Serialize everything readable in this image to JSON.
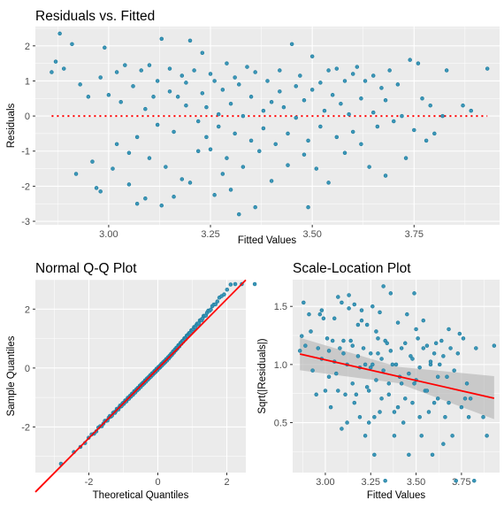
{
  "colors": {
    "panel_bg": "#ebebeb",
    "grid": "#ffffff",
    "point": "#1f7ea0",
    "point_fill": "#3d97b8",
    "line": "#ff0000",
    "band": "#b3b3b3"
  },
  "chart_data": [
    {
      "type": "scatter",
      "title": "Residuals vs. Fitted",
      "xlabel": "Fitted Values",
      "ylabel": "Residuals",
      "xlim": [
        2.82,
        3.96
      ],
      "ylim": [
        -3.1,
        2.55
      ],
      "xticks": [
        {
          "v": 3.0,
          "label": "3.00"
        },
        {
          "v": 3.25,
          "label": "3.25"
        },
        {
          "v": 3.5,
          "label": "3.50"
        },
        {
          "v": 3.75,
          "label": "3.75"
        }
      ],
      "yticks": [
        {
          "v": -3,
          "label": "-3"
        },
        {
          "v": -2,
          "label": "-2"
        },
        {
          "v": -1,
          "label": "-1"
        },
        {
          "v": 0,
          "label": "0"
        },
        {
          "v": 1,
          "label": "1"
        },
        {
          "v": 2,
          "label": "2"
        }
      ],
      "grid": true,
      "reference_line": {
        "y": 0,
        "style": "dotted",
        "x_range": [
          2.86,
          3.93
        ]
      },
      "points": [
        [
          2.86,
          1.25
        ],
        [
          2.87,
          1.55
        ],
        [
          2.88,
          2.35
        ],
        [
          2.89,
          1.35
        ],
        [
          2.91,
          2.05
        ],
        [
          2.92,
          -1.65
        ],
        [
          2.93,
          0.9
        ],
        [
          2.95,
          0.55
        ],
        [
          2.96,
          -1.3
        ],
        [
          2.97,
          -2.05
        ],
        [
          2.98,
          -2.15
        ],
        [
          2.98,
          1.1
        ],
        [
          2.99,
          1.95
        ],
        [
          3.0,
          0.6
        ],
        [
          3.01,
          -1.5
        ],
        [
          3.02,
          -0.8
        ],
        [
          3.02,
          1.25
        ],
        [
          3.03,
          0.4
        ],
        [
          3.04,
          1.45
        ],
        [
          3.05,
          -1.05
        ],
        [
          3.05,
          -1.95
        ],
        [
          3.06,
          0.85
        ],
        [
          3.07,
          -0.6
        ],
        [
          3.07,
          -2.5
        ],
        [
          3.08,
          1.3
        ],
        [
          3.09,
          0.2
        ],
        [
          3.09,
          -2.35
        ],
        [
          3.1,
          1.45
        ],
        [
          3.1,
          -1.2
        ],
        [
          3.11,
          0.55
        ],
        [
          3.12,
          -0.25
        ],
        [
          3.12,
          1.0
        ],
        [
          3.13,
          2.2
        ],
        [
          3.13,
          -2.55
        ],
        [
          3.14,
          -1.45
        ],
        [
          3.15,
          0.7
        ],
        [
          3.15,
          1.35
        ],
        [
          3.16,
          -0.45
        ],
        [
          3.16,
          -2.3
        ],
        [
          3.17,
          0.55
        ],
        [
          3.18,
          1.15
        ],
        [
          3.18,
          -1.8
        ],
        [
          3.19,
          0.3
        ],
        [
          3.19,
          0.95
        ],
        [
          3.2,
          -1.9
        ],
        [
          3.2,
          2.15
        ],
        [
          3.21,
          1.3
        ],
        [
          3.22,
          -0.15
        ],
        [
          3.22,
          -1.0
        ],
        [
          3.23,
          0.65
        ],
        [
          3.23,
          1.8
        ],
        [
          3.24,
          -0.6
        ],
        [
          3.24,
          0.25
        ],
        [
          3.25,
          -0.95
        ],
        [
          3.25,
          1.2
        ],
        [
          3.26,
          -2.25
        ],
        [
          3.26,
          1.0
        ],
        [
          3.27,
          0.05
        ],
        [
          3.27,
          -0.3
        ],
        [
          3.28,
          -1.65
        ],
        [
          3.28,
          0.75
        ],
        [
          3.29,
          1.5
        ],
        [
          3.29,
          -1.2
        ],
        [
          3.3,
          0.35
        ],
        [
          3.3,
          -2.1
        ],
        [
          3.31,
          1.1
        ],
        [
          3.31,
          -0.5
        ],
        [
          3.32,
          -2.8
        ],
        [
          3.32,
          0.9
        ],
        [
          3.33,
          0.0
        ],
        [
          3.33,
          -1.45
        ],
        [
          3.34,
          1.4
        ],
        [
          3.35,
          -0.7
        ],
        [
          3.35,
          0.55
        ],
        [
          3.36,
          -2.6
        ],
        [
          3.36,
          1.25
        ],
        [
          3.37,
          -1.0
        ],
        [
          3.38,
          0.15
        ],
        [
          3.38,
          -0.35
        ],
        [
          3.39,
          1.0
        ],
        [
          3.4,
          0.4
        ],
        [
          3.4,
          -1.85
        ],
        [
          3.41,
          -0.8
        ],
        [
          3.42,
          1.3
        ],
        [
          3.42,
          0.7
        ],
        [
          3.43,
          0.25
        ],
        [
          3.44,
          -0.5
        ],
        [
          3.44,
          -1.4
        ],
        [
          3.45,
          2.05
        ],
        [
          3.46,
          0.85
        ],
        [
          3.46,
          -0.05
        ],
        [
          3.47,
          1.15
        ],
        [
          3.48,
          -1.1
        ],
        [
          3.48,
          0.45
        ],
        [
          3.49,
          -2.6
        ],
        [
          3.49,
          -0.7
        ],
        [
          3.5,
          1.7
        ],
        [
          3.5,
          0.75
        ],
        [
          3.51,
          -1.5
        ],
        [
          3.52,
          -0.3
        ],
        [
          3.52,
          0.95
        ],
        [
          3.53,
          0.15
        ],
        [
          3.54,
          1.3
        ],
        [
          3.54,
          -1.9
        ],
        [
          3.55,
          0.6
        ],
        [
          3.56,
          -0.6
        ],
        [
          3.56,
          1.35
        ],
        [
          3.57,
          0.35
        ],
        [
          3.58,
          1.0
        ],
        [
          3.58,
          -1.05
        ],
        [
          3.59,
          0.05
        ],
        [
          3.6,
          1.2
        ],
        [
          3.6,
          -0.45
        ],
        [
          3.61,
          1.4
        ],
        [
          3.62,
          -0.8
        ],
        [
          3.62,
          0.5
        ],
        [
          3.63,
          1.0
        ],
        [
          3.64,
          -1.45
        ],
        [
          3.65,
          1.15
        ],
        [
          3.65,
          0.1
        ],
        [
          3.66,
          -0.3
        ],
        [
          3.67,
          0.8
        ],
        [
          3.68,
          -1.7
        ],
        [
          3.68,
          0.45
        ],
        [
          3.69,
          1.3
        ],
        [
          3.7,
          -0.15
        ],
        [
          3.71,
          0.9
        ],
        [
          3.72,
          0.0
        ],
        [
          3.73,
          -1.2
        ],
        [
          3.74,
          1.6
        ],
        [
          3.75,
          -0.4
        ],
        [
          3.76,
          1.5
        ],
        [
          3.77,
          0.5
        ],
        [
          3.78,
          -0.7
        ],
        [
          3.79,
          0.3
        ],
        [
          3.8,
          -0.5
        ],
        [
          3.82,
          0.0
        ],
        [
          3.83,
          1.3
        ],
        [
          3.87,
          0.3
        ],
        [
          3.89,
          0.15
        ],
        [
          3.93,
          1.35
        ]
      ]
    },
    {
      "type": "scatter",
      "title": "Normal Q-Q Plot",
      "xlabel": "Theoretical Quantiles",
      "ylabel": "Sample Quantiles",
      "xlim": [
        -3.55,
        2.55
      ],
      "ylim": [
        -3.55,
        3.0
      ],
      "xticks": [
        {
          "v": -2,
          "label": "-2"
        },
        {
          "v": 0,
          "label": "0"
        },
        {
          "v": 2,
          "label": "2"
        }
      ],
      "yticks": [
        {
          "v": -2,
          "label": "-2"
        },
        {
          "v": 0,
          "label": "0"
        },
        {
          "v": 2,
          "label": "2"
        }
      ],
      "grid": true,
      "reference_line": {
        "intercept": -0.02,
        "slope": 1.18
      },
      "n_points": 201,
      "sample_range": [
        -3.25,
        2.85
      ]
    },
    {
      "type": "scatter",
      "title": "Scale-Location Plot",
      "xlabel": "Fitted Values",
      "ylabel": "Sqrt(|Residuals|)",
      "xlim": [
        2.82,
        3.96
      ],
      "ylim": [
        0.07,
        1.73
      ],
      "xticks": [
        {
          "v": 3.0,
          "label": "3.00"
        },
        {
          "v": 3.25,
          "label": "3.25"
        },
        {
          "v": 3.5,
          "label": "3.50"
        },
        {
          "v": 3.75,
          "label": "3.75"
        }
      ],
      "yticks": [
        {
          "v": 0.5,
          "label": "0.5"
        },
        {
          "v": 1.0,
          "label": "1.0"
        },
        {
          "v": 1.5,
          "label": "1.5"
        }
      ],
      "grid": true,
      "trend_line": {
        "x": [
          2.86,
          3.93
        ],
        "y": [
          1.09,
          0.71
        ]
      },
      "confidence_band": {
        "x": [
          2.86,
          3.4,
          3.93
        ],
        "lower": [
          0.95,
          0.84,
          0.53
        ],
        "upper": [
          1.23,
          0.98,
          0.9
        ]
      },
      "points_from": "sqrt(|residuals|) of panel 1"
    }
  ]
}
